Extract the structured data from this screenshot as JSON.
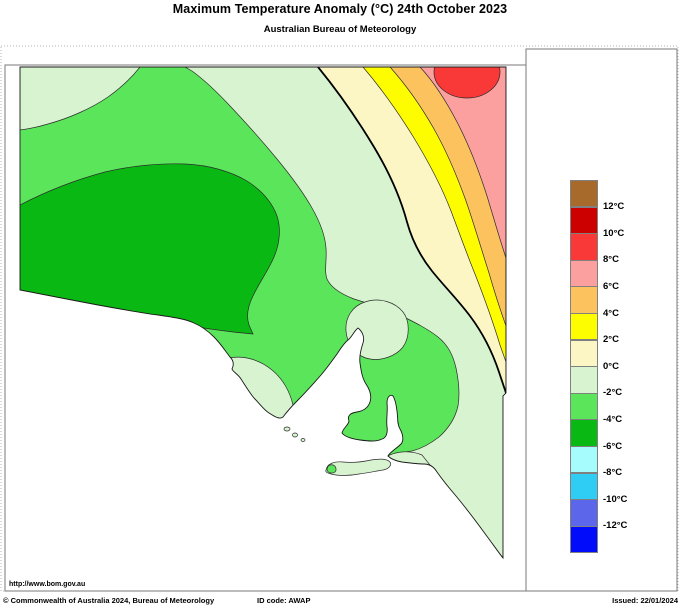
{
  "title": "Maximum Temperature Anomaly (°C)  24th October 2023",
  "subtitle": "Australian Bureau of Meteorology",
  "footer": {
    "url": "http://www.bom.gov.au",
    "copyright": "© Commonwealth of Australia 2024, Bureau of Meteorology",
    "id_code": "ID code: AWAP",
    "issued": "Issued: 22/01/2024"
  },
  "colors": {
    "brown": "#a86a2b",
    "red_dark": "#cd0000",
    "red": "#f93838",
    "pink": "#fc9f9f",
    "orange": "#fcc25e",
    "yellow": "#fdfd00",
    "cream": "#fcf6c5",
    "green_pale": "#d8f3d0",
    "green_mid": "#5be55b",
    "green_dark": "#0ab813",
    "cyan_pale": "#a6fcfc",
    "cyan": "#2fcdf4",
    "blue_violet": "#5c66ea",
    "blue": "#000cfa",
    "zero_line": "#000000",
    "contour": "#2b2b2b",
    "frame": "#7a7a7a",
    "sea": "#ffffff"
  },
  "legend": {
    "unit": "°C",
    "labels": [
      "12°C",
      "10°C",
      "8°C",
      "6°C",
      "4°C",
      "2°C",
      "0°C",
      "-2°C",
      "-4°C",
      "-6°C",
      "-8°C",
      "-10°C",
      "-12°C"
    ],
    "colors": [
      "#a86a2b",
      "#cd0000",
      "#f93838",
      "#fc9f9f",
      "#fcc25e",
      "#fdfd00",
      "#fcf6c5",
      "#d8f3d0",
      "#5be55b",
      "#0ab813",
      "#a6fcfc",
      "#2fcdf4",
      "#5c66ea",
      "#000cfa"
    ]
  },
  "chart_data": {
    "type": "heatmap",
    "subtype": "filled-contour-anomaly-map",
    "region_shown": "South Australia",
    "title": "Maximum Temperature Anomaly (°C)  24th October 2023",
    "units": "°C",
    "scale_boundaries_degC": [
      12,
      10,
      8,
      6,
      4,
      2,
      0,
      -2,
      -4,
      -6,
      -8,
      -10,
      -12
    ],
    "legend_position": "right",
    "zero_contour": "thick black line running from the northern border (about two-thirds of the way east) south-east to the eastern border, separating cooler-than-average greens (south-west) from warmer-than-average yellows/reds (north-east)",
    "bands_visible": [
      {
        "range_degC": "8 to 10",
        "color_name": "red",
        "location": "small oval touching the northern border in the far north-east corner"
      },
      {
        "range_degC": "6 to 8",
        "color_name": "pink",
        "location": "north-east corner of the state"
      },
      {
        "range_degC": "4 to 6",
        "color_name": "orange",
        "location": "diagonal band inside the north-east corner"
      },
      {
        "range_degC": "2 to 4",
        "color_name": "yellow",
        "location": "diagonal band south-west of the orange band"
      },
      {
        "range_degC": "0 to 2",
        "color_name": "cream",
        "location": "diagonal band hugging the zero line"
      },
      {
        "range_degC": "-2 to 0",
        "color_name": "pale green",
        "location": "north-west corner strip, broad eastern and south-eastern area, blob near head of Spencer Gulf, lower Eyre Peninsula coast and Kangaroo Island"
      },
      {
        "range_degC": "-4 to -2",
        "color_name": "mid green",
        "location": "large area over central and western South Australia, including Yorke Peninsula and Adelaide region"
      },
      {
        "range_degC": "-6 to -4",
        "color_name": "dark green",
        "location": "west-central inland area extending to the far-west coast"
      }
    ]
  }
}
